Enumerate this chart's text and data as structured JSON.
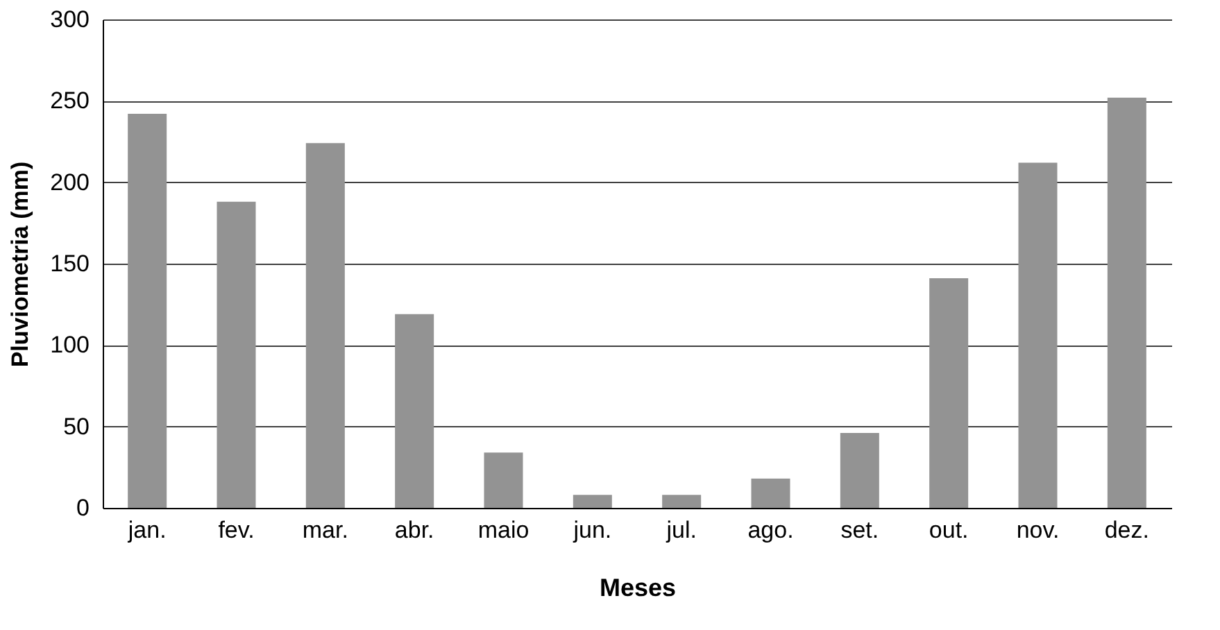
{
  "chart_data": {
    "type": "bar",
    "xlabel": "Meses",
    "ylabel": "Pluviometria (mm)",
    "categories": [
      "jan.",
      "fev.",
      "mar.",
      "abr.",
      "maio",
      "jun.",
      "jul.",
      "ago.",
      "set.",
      "out.",
      "nov.",
      "dez."
    ],
    "values": [
      242,
      188,
      224,
      119,
      34,
      8,
      8,
      18,
      46,
      141,
      212,
      252
    ],
    "color": "#939393",
    "ylim": [
      0,
      300
    ],
    "yticks": [
      0,
      50,
      100,
      150,
      200,
      250,
      300
    ],
    "grid": "y"
  }
}
